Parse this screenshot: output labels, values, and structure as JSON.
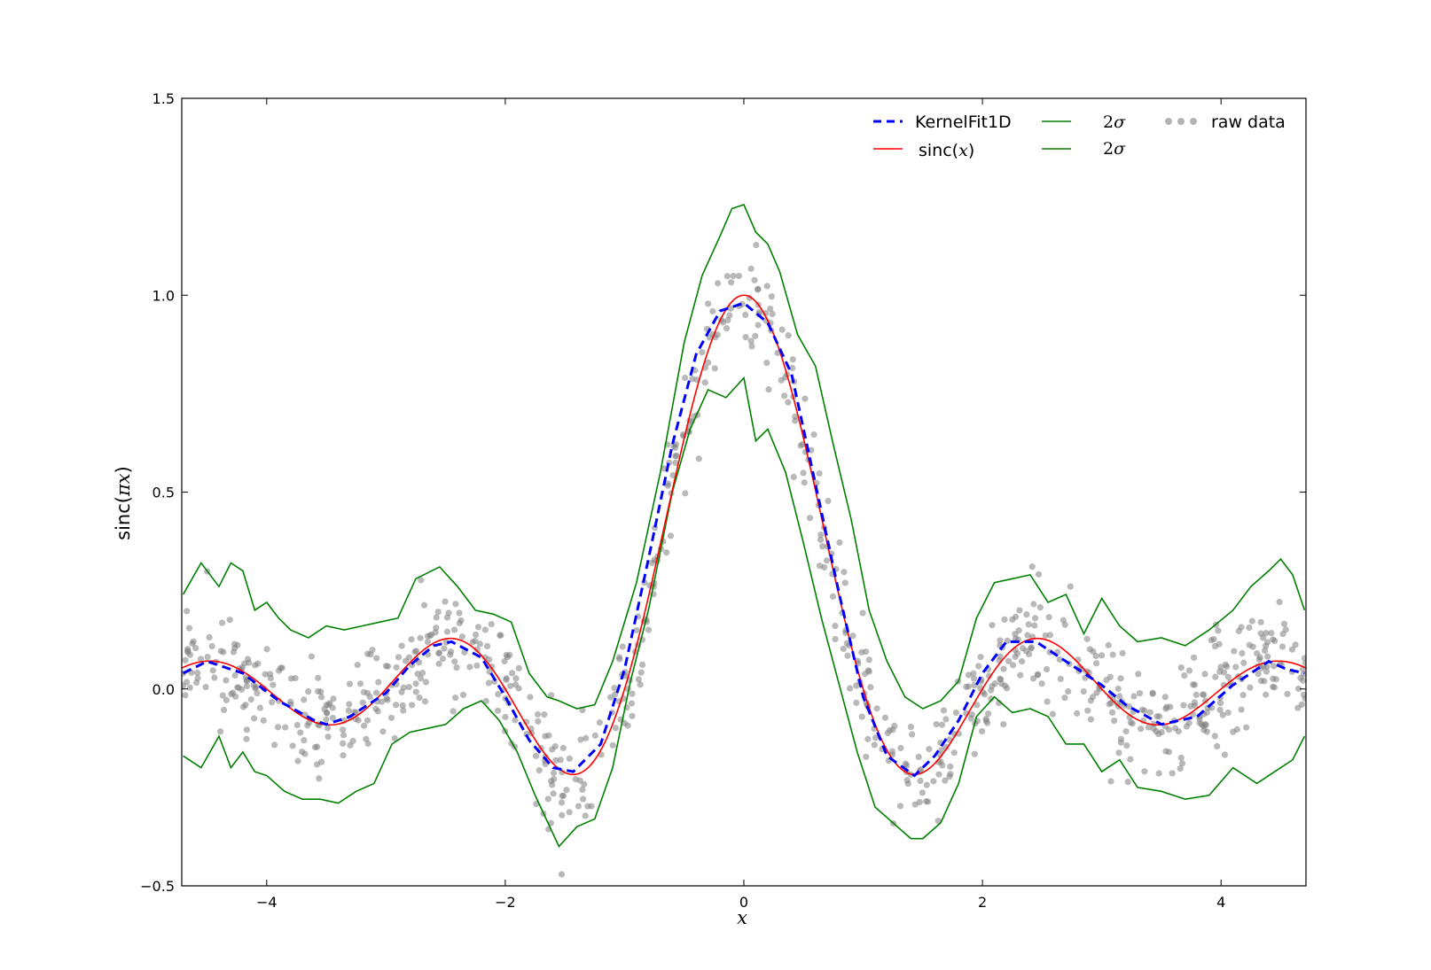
{
  "chart_data": {
    "type": "line",
    "xlabel": "x",
    "ylabel_text": "sinc(",
    "ylabel_math": "πx",
    "ylabel_close": ")",
    "xlim": [
      -4.712,
      4.712
    ],
    "ylim": [
      -0.5,
      1.5
    ],
    "x_ticks": [
      -4,
      -2,
      0,
      2,
      4
    ],
    "x_tick_labels": [
      "−4",
      "−2",
      "0",
      "2",
      "4"
    ],
    "y_ticks": [
      -0.5,
      0.0,
      0.5,
      1.0,
      1.5
    ],
    "y_tick_labels": [
      "−0.5",
      "0.0",
      "0.5",
      "1.0",
      "1.5"
    ],
    "grid": false,
    "legend_placement": "top-right",
    "legend": [
      {
        "label": "KernelFit1D",
        "style": "dashed",
        "color": "#0000ff"
      },
      {
        "label": "sinc(x)",
        "style": "solid",
        "color": "#ff0000"
      },
      {
        "label": "2σ",
        "style": "solid",
        "color": "#008000"
      },
      {
        "label": "2σ",
        "style": "solid",
        "color": "#008000"
      },
      {
        "label": "raw data",
        "style": "markers",
        "color": "#808080"
      }
    ],
    "legend_text": {
      "kernelfit": "KernelFit1D",
      "sinc_prefix": "sinc(",
      "sinc_math": "x",
      "sinc_suffix": ")",
      "upper_2sigma_num": "2",
      "upper_2sigma_sym": "σ",
      "lower_2sigma_num": "2",
      "lower_2sigma_sym": "σ",
      "raw": "raw data"
    },
    "series": [
      {
        "name": "KernelFit1D",
        "x": [
          -4.7,
          -4.5,
          -4.2,
          -3.9,
          -3.6,
          -3.5,
          -3.3,
          -3.0,
          -2.8,
          -2.6,
          -2.45,
          -2.2,
          -2.0,
          -1.8,
          -1.6,
          -1.43,
          -1.2,
          -1.0,
          -0.8,
          -0.6,
          -0.4,
          -0.2,
          0.0,
          0.2,
          0.4,
          0.6,
          0.8,
          1.0,
          1.2,
          1.43,
          1.6,
          1.8,
          2.0,
          2.2,
          2.45,
          2.6,
          2.8,
          3.0,
          3.2,
          3.5,
          3.8,
          4.1,
          4.4,
          4.55,
          4.7
        ],
        "y": [
          0.04,
          0.07,
          0.04,
          -0.03,
          -0.08,
          -0.09,
          -0.07,
          -0.01,
          0.06,
          0.11,
          0.12,
          0.08,
          -0.02,
          -0.13,
          -0.2,
          -0.21,
          -0.14,
          0.05,
          0.33,
          0.62,
          0.85,
          0.96,
          0.98,
          0.93,
          0.8,
          0.52,
          0.24,
          -0.02,
          -0.17,
          -0.22,
          -0.17,
          -0.08,
          0.04,
          0.12,
          0.12,
          0.09,
          0.05,
          0.01,
          -0.04,
          -0.09,
          -0.07,
          0.01,
          0.07,
          0.05,
          0.04
        ]
      },
      {
        "name": "sinc(x)",
        "function": "sinc",
        "x_range": [
          -4.712,
          4.712
        ]
      },
      {
        "name": "2σ upper",
        "x": [
          -4.7,
          -4.55,
          -4.4,
          -4.3,
          -4.2,
          -4.1,
          -4.0,
          -3.9,
          -3.8,
          -3.65,
          -3.5,
          -3.35,
          -3.2,
          -3.05,
          -2.9,
          -2.75,
          -2.55,
          -2.4,
          -2.25,
          -2.1,
          -1.95,
          -1.8,
          -1.65,
          -1.55,
          -1.4,
          -1.25,
          -1.1,
          -0.9,
          -0.7,
          -0.5,
          -0.35,
          -0.2,
          -0.1,
          0.0,
          0.1,
          0.2,
          0.3,
          0.45,
          0.6,
          0.75,
          0.9,
          1.05,
          1.2,
          1.35,
          1.5,
          1.65,
          1.8,
          1.95,
          2.1,
          2.25,
          2.4,
          2.55,
          2.7,
          2.85,
          3.0,
          3.15,
          3.3,
          3.5,
          3.7,
          3.9,
          4.1,
          4.25,
          4.4,
          4.5,
          4.6,
          4.7
        ],
        "y": [
          0.24,
          0.32,
          0.26,
          0.32,
          0.3,
          0.2,
          0.22,
          0.18,
          0.15,
          0.13,
          0.16,
          0.15,
          0.16,
          0.17,
          0.18,
          0.28,
          0.31,
          0.26,
          0.2,
          0.19,
          0.17,
          0.04,
          -0.02,
          -0.03,
          -0.05,
          -0.04,
          0.07,
          0.27,
          0.55,
          0.88,
          1.05,
          1.15,
          1.22,
          1.23,
          1.16,
          1.13,
          1.06,
          0.9,
          0.82,
          0.62,
          0.43,
          0.2,
          0.07,
          -0.02,
          -0.05,
          -0.03,
          0.02,
          0.18,
          0.27,
          0.28,
          0.29,
          0.22,
          0.24,
          0.14,
          0.23,
          0.16,
          0.12,
          0.13,
          0.11,
          0.15,
          0.2,
          0.26,
          0.3,
          0.33,
          0.29,
          0.2
        ]
      },
      {
        "name": "2σ lower",
        "x": [
          -4.7,
          -4.55,
          -4.4,
          -4.3,
          -4.2,
          -4.1,
          -4.0,
          -3.85,
          -3.7,
          -3.55,
          -3.4,
          -3.25,
          -3.1,
          -2.95,
          -2.8,
          -2.65,
          -2.5,
          -2.35,
          -2.2,
          -2.05,
          -1.9,
          -1.75,
          -1.55,
          -1.4,
          -1.25,
          -1.1,
          -0.95,
          -0.8,
          -0.6,
          -0.45,
          -0.3,
          -0.15,
          0.0,
          0.1,
          0.2,
          0.35,
          0.5,
          0.65,
          0.8,
          0.95,
          1.1,
          1.25,
          1.4,
          1.5,
          1.65,
          1.8,
          1.95,
          2.1,
          2.25,
          2.4,
          2.55,
          2.7,
          2.85,
          3.0,
          3.15,
          3.3,
          3.5,
          3.7,
          3.9,
          4.1,
          4.3,
          4.45,
          4.6,
          4.7
        ],
        "y": [
          -0.17,
          -0.2,
          -0.12,
          -0.2,
          -0.16,
          -0.21,
          -0.22,
          -0.26,
          -0.28,
          -0.28,
          -0.29,
          -0.26,
          -0.24,
          -0.14,
          -0.11,
          -0.1,
          -0.09,
          -0.05,
          -0.03,
          -0.08,
          -0.16,
          -0.27,
          -0.4,
          -0.35,
          -0.33,
          -0.2,
          0.02,
          0.2,
          0.5,
          0.66,
          0.76,
          0.74,
          0.79,
          0.63,
          0.66,
          0.55,
          0.37,
          0.18,
          0.01,
          -0.16,
          -0.3,
          -0.34,
          -0.38,
          -0.38,
          -0.34,
          -0.24,
          -0.07,
          -0.02,
          -0.06,
          -0.05,
          -0.07,
          -0.14,
          -0.14,
          -0.21,
          -0.18,
          -0.25,
          -0.26,
          -0.28,
          -0.27,
          -0.2,
          -0.24,
          -0.21,
          -0.18,
          -0.12
        ]
      },
      {
        "name": "raw data",
        "n_points": 900,
        "noise_sd": 0.07,
        "x_range": [
          -4.712,
          4.712
        ],
        "underlying": "sinc"
      }
    ],
    "colors": {
      "kernelfit": "#0000ff",
      "sinc": "#ff0000",
      "sigma": "#008000",
      "raw": "#808080"
    }
  }
}
